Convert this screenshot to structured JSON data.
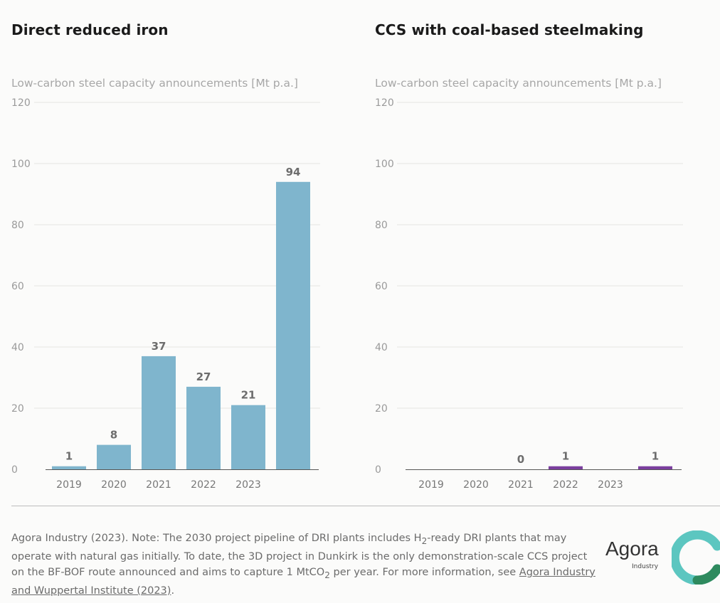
{
  "chart_data": [
    {
      "type": "bar",
      "title": "Direct reduced iron",
      "ylabel": "Low-carbon steel capacity announcements [Mt p.a.]",
      "ylim": [
        0,
        120
      ],
      "yticks": [
        0,
        20,
        40,
        60,
        80,
        100,
        120
      ],
      "categories": [
        "2019",
        "2020",
        "2021",
        "2022",
        "2023",
        ""
      ],
      "values": [
        1,
        8,
        37,
        27,
        21,
        94
      ],
      "value_labels": [
        "1",
        "8",
        "37",
        "27",
        "21",
        "94"
      ],
      "color": "#7fb5cd",
      "grid": true
    },
    {
      "type": "bar",
      "title": "CCS with coal-based steelmaking",
      "ylabel": "Low-carbon steel capacity announcements [Mt p.a.]",
      "ylim": [
        0,
        120
      ],
      "yticks": [
        0,
        20,
        40,
        60,
        80,
        100,
        120
      ],
      "categories": [
        "2019",
        "2020",
        "2021",
        "2022",
        "2023",
        ""
      ],
      "values": [
        null,
        null,
        0,
        1,
        null,
        1
      ],
      "value_labels": [
        "",
        "",
        "0",
        "1",
        "",
        "1"
      ],
      "color": "#7b3f9e",
      "grid": true
    }
  ],
  "footnote": {
    "text_part1": "Agora Industry (2023). Note: The 2030 project pipeline of DRI plants includes H",
    "sub1": "2",
    "text_part2": "-ready DRI plants that may operate with natural gas initially. To date, the 3D project in Dunkirk is the only demonstration-scale CCS project on the BF-BOF route announced and aims to capture 1 MtCO",
    "sub2": "2",
    "text_part3": " per year. For more information, see ",
    "link_text": "Agora Industry and Wuppertal Institute (2023)",
    "text_end": "."
  },
  "logo": {
    "name": "Agora",
    "sub": "Industry",
    "colors": [
      "#5cc6c0",
      "#2e8a5e"
    ]
  }
}
